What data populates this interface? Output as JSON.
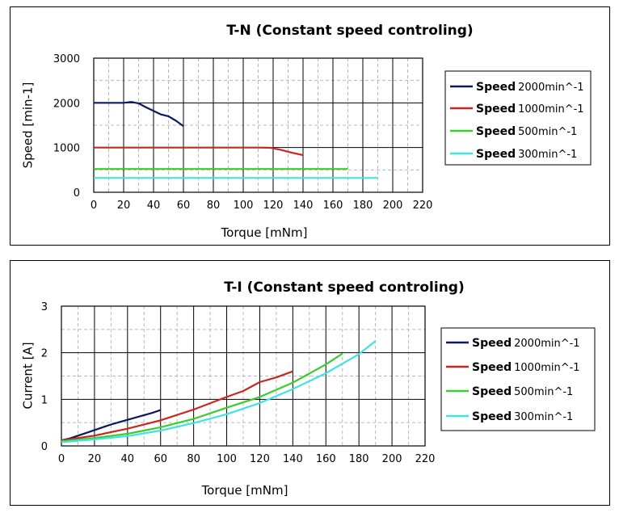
{
  "chart_data": [
    {
      "type": "line",
      "title": "T-N (Constant speed controling)",
      "xlabel": "Torque [mNm]",
      "ylabel": "Speed [min-1]",
      "xlim": [
        0,
        220
      ],
      "ylim": [
        0,
        3000
      ],
      "xticks": [
        0,
        20,
        40,
        60,
        80,
        100,
        120,
        140,
        160,
        180,
        200,
        220
      ],
      "yticks": [
        0,
        1000,
        2000,
        3000
      ],
      "grid": true,
      "legend_position": "right",
      "series": [
        {
          "name_bold": "Speed",
          "name_rest": "2000min^-1",
          "color": "#0b1a5e",
          "x": [
            0,
            10,
            20,
            25,
            30,
            35,
            40,
            45,
            50,
            55,
            60
          ],
          "y": [
            2000,
            2000,
            2000,
            2020,
            1990,
            1900,
            1820,
            1740,
            1700,
            1600,
            1480
          ]
        },
        {
          "name_bold": "Speed",
          "name_rest": "1000min^-1",
          "color": "#c8261f",
          "x": [
            0,
            20,
            40,
            60,
            80,
            100,
            110,
            118,
            125,
            132,
            140
          ],
          "y": [
            1000,
            1000,
            1000,
            1000,
            1000,
            1000,
            1000,
            995,
            950,
            890,
            830
          ]
        },
        {
          "name_bold": "Speed",
          "name_rest": "500min^-1",
          "color": "#3ccc2c",
          "x": [
            0,
            40,
            80,
            120,
            170
          ],
          "y": [
            520,
            520,
            520,
            520,
            520
          ]
        },
        {
          "name_bold": "Speed",
          "name_rest": "300min^-1",
          "color": "#3fe3e3",
          "x": [
            0,
            40,
            80,
            120,
            190
          ],
          "y": [
            320,
            320,
            320,
            320,
            320
          ]
        }
      ]
    },
    {
      "type": "line",
      "title": "T-I (Constant speed controling)",
      "xlabel": "Torque [mNm]",
      "ylabel": "Current [A]",
      "xlim": [
        0,
        220
      ],
      "ylim": [
        0,
        3
      ],
      "xticks": [
        0,
        20,
        40,
        60,
        80,
        100,
        120,
        140,
        160,
        180,
        200,
        220
      ],
      "yticks": [
        0,
        1,
        2,
        3
      ],
      "grid": true,
      "legend_position": "right",
      "series": [
        {
          "name_bold": "Speed",
          "name_rest": "2000min^-1",
          "color": "#0b1a5e",
          "x": [
            0,
            5,
            10,
            15,
            20,
            25,
            30,
            35,
            40,
            45,
            50,
            55,
            60
          ],
          "y": [
            0.12,
            0.16,
            0.22,
            0.28,
            0.34,
            0.4,
            0.46,
            0.51,
            0.56,
            0.61,
            0.66,
            0.71,
            0.77
          ]
        },
        {
          "name_bold": "Speed",
          "name_rest": "1000min^-1",
          "color": "#c8261f",
          "x": [
            0,
            20,
            40,
            60,
            80,
            100,
            110,
            120,
            130,
            140
          ],
          "y": [
            0.12,
            0.22,
            0.37,
            0.55,
            0.78,
            1.05,
            1.18,
            1.37,
            1.47,
            1.6
          ]
        },
        {
          "name_bold": "Speed",
          "name_rest": "500min^-1",
          "color": "#3ccc2c",
          "x": [
            0,
            20,
            40,
            60,
            80,
            100,
            120,
            140,
            160,
            170
          ],
          "y": [
            0.1,
            0.17,
            0.26,
            0.4,
            0.58,
            0.82,
            1.05,
            1.36,
            1.75,
            1.98
          ]
        },
        {
          "name_bold": "Speed",
          "name_rest": "300min^-1",
          "color": "#3fe3e3",
          "x": [
            0,
            20,
            40,
            60,
            80,
            100,
            120,
            140,
            160,
            180,
            190
          ],
          "y": [
            0.08,
            0.14,
            0.21,
            0.33,
            0.49,
            0.68,
            0.92,
            1.22,
            1.56,
            1.97,
            2.25
          ]
        }
      ]
    }
  ]
}
